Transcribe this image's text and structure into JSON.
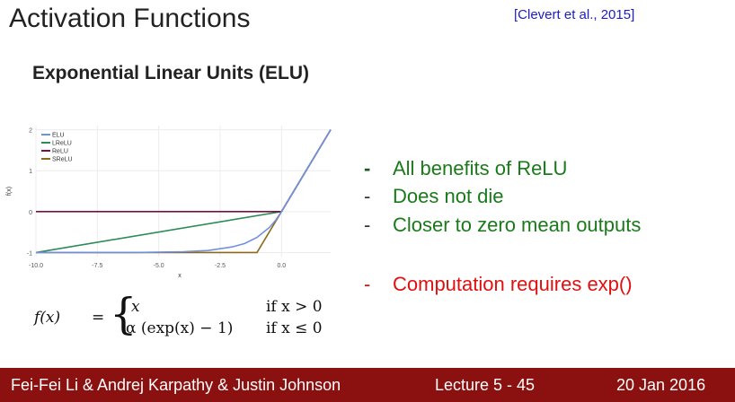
{
  "slide": {
    "title": "Activation Functions",
    "citation": "[Clevert et al., 2015]",
    "subtitle": "Exponential Linear Units (ELU)"
  },
  "bullets": [
    {
      "dash": "-",
      "text": "All benefits of ReLU",
      "color": "#1a7a1a"
    },
    {
      "dash": "-",
      "text": "Does not die",
      "color": "#1a7a1a"
    },
    {
      "dash": "-",
      "text": "Closer to zero mean outputs",
      "color": "#1a7a1a"
    },
    {
      "dash": "-",
      "text": "Computation requires exp()",
      "color": "#e01010"
    }
  ],
  "formula": {
    "lhs": "f(x)",
    "eq": "=",
    "case1_expr": "x",
    "case1_cond": "if x > 0",
    "case2_expr": "α (exp(x) − 1)",
    "case2_cond": "if x ≤ 0"
  },
  "footer": {
    "authors": "Fei-Fei Li & Andrej Karpathy & Justin Johnson",
    "lecture": "Lecture 5 - 45",
    "date": "20 Jan 2016"
  },
  "chart_data": {
    "type": "line",
    "xlabel": "x",
    "ylabel": "f(x)",
    "xlim": [
      -10,
      2
    ],
    "ylim": [
      -1.1,
      2.1
    ],
    "x_ticks": [
      -10.0,
      -7.5,
      -5.0,
      -2.5,
      0.0
    ],
    "x_tick_labels": [
      "-10.0",
      "-7.5",
      "-5.0",
      "-2.5",
      "0.0"
    ],
    "y_ticks": [
      -1,
      0,
      1,
      2
    ],
    "y_tick_labels": [
      "-1",
      "0",
      "1",
      "2"
    ],
    "legend_position": "top-left",
    "series": [
      {
        "name": "ELU",
        "color": "#7090e0",
        "x": [
          -10,
          -6,
          -4,
          -3,
          -2,
          -1.5,
          -1,
          -0.5,
          -0.25,
          0,
          1,
          2
        ],
        "y": [
          -1.0,
          -1.0,
          -0.98,
          -0.95,
          -0.86,
          -0.78,
          -0.63,
          -0.39,
          -0.22,
          0,
          1,
          2
        ]
      },
      {
        "name": "LReLU",
        "color": "#2e8b57",
        "x": [
          -10,
          0,
          2
        ],
        "y": [
          -1.0,
          0,
          2
        ]
      },
      {
        "name": "ReLU",
        "color": "#7b1040",
        "x": [
          -10,
          0,
          2
        ],
        "y": [
          0,
          0,
          2
        ]
      },
      {
        "name": "SReLU",
        "color": "#8b6a1a",
        "x": [
          -10,
          -1,
          0,
          2
        ],
        "y": [
          -1.0,
          -1.0,
          0,
          2
        ]
      }
    ]
  }
}
